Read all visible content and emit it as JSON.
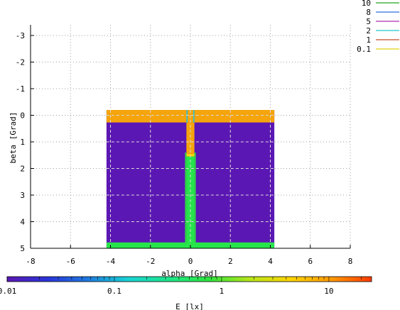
{
  "chart_data": {
    "type": "heatmap",
    "xlabel": "alpha [Grad]",
    "ylabel": "beta [Grad]",
    "xlim": [
      -8,
      8
    ],
    "ylim": [
      -3.4,
      5
    ],
    "y_axis_inverted": true,
    "x_ticks": [
      -8,
      -6,
      -4,
      -2,
      0,
      2,
      4,
      6,
      8
    ],
    "x_tick_labels": [
      "-8",
      "-6",
      "-4",
      "-2",
      "0",
      "2",
      "4",
      "6",
      "8"
    ],
    "y_ticks": [
      -3,
      -2,
      -1,
      0,
      1,
      2,
      3,
      4,
      5
    ],
    "y_tick_labels": [
      "-3",
      "-2",
      "-1",
      "0",
      "1",
      "2",
      "3",
      "4",
      "5"
    ],
    "grid": true,
    "regions": [
      {
        "id": "background",
        "x": [
          -4.2,
          4.2
        ],
        "y": [
          -0.2,
          5.0
        ],
        "color": "#5b17b3"
      },
      {
        "id": "top-band",
        "x": [
          -4.2,
          4.2
        ],
        "y": [
          -0.2,
          0.27
        ],
        "color": "#f5a40c"
      },
      {
        "id": "bottom-band",
        "x": [
          -4.2,
          4.2
        ],
        "y": [
          4.78,
          5.0
        ],
        "color": "#26e54a"
      },
      {
        "id": "center-orange",
        "x": [
          -0.2,
          0.2
        ],
        "y": [
          0.27,
          1.45
        ],
        "color": "#f5a40c"
      },
      {
        "id": "center-yellow-1",
        "x": [
          -0.2,
          0.2
        ],
        "y": [
          1.45,
          1.55
        ],
        "color": "#ffd500"
      },
      {
        "id": "center-green",
        "x": [
          -0.2,
          0.2
        ],
        "y": [
          1.55,
          5.0
        ],
        "color": "#26e54a"
      },
      {
        "id": "center-green-gap-1",
        "x": [
          -0.27,
          -0.2
        ],
        "y": [
          1.4,
          4.8
        ],
        "color": "#2ed448"
      },
      {
        "id": "center-green-gap-2",
        "x": [
          0.2,
          0.27
        ],
        "y": [
          1.4,
          4.8
        ],
        "color": "#2ed448"
      },
      {
        "id": "top-cyan-1",
        "x": [
          -0.2,
          -0.14
        ],
        "y": [
          -0.2,
          0.27
        ],
        "color": "#28bfd6"
      },
      {
        "id": "top-cyan-2",
        "x": [
          0.14,
          0.2
        ],
        "y": [
          -0.2,
          0.27
        ],
        "color": "#28bfd6"
      }
    ],
    "contour_legend": [
      {
        "label": "10",
        "color": "#22a822"
      },
      {
        "label": "8",
        "color": "#2a6fe0"
      },
      {
        "label": "5",
        "color": "#b02ab0"
      },
      {
        "label": "2",
        "color": "#22c8c8"
      },
      {
        "label": "1",
        "color": "#c84a2a"
      },
      {
        "label": "0.1",
        "color": "#e0d010"
      }
    ],
    "colorbar": {
      "label": "E [lx]",
      "scale": "log",
      "range": [
        0.01,
        25
      ],
      "tick_labels": [
        "0.01",
        "0.1",
        "1",
        "10"
      ],
      "tick_values": [
        0.01,
        0.1,
        1,
        10
      ],
      "stops": [
        "#5b17b3",
        "#2a35d9",
        "#1e7be0",
        "#19d4d4",
        "#1ce88a",
        "#2ee63d",
        "#b8e61a",
        "#ffd500",
        "#ff9a00",
        "#ff3a00"
      ]
    }
  }
}
